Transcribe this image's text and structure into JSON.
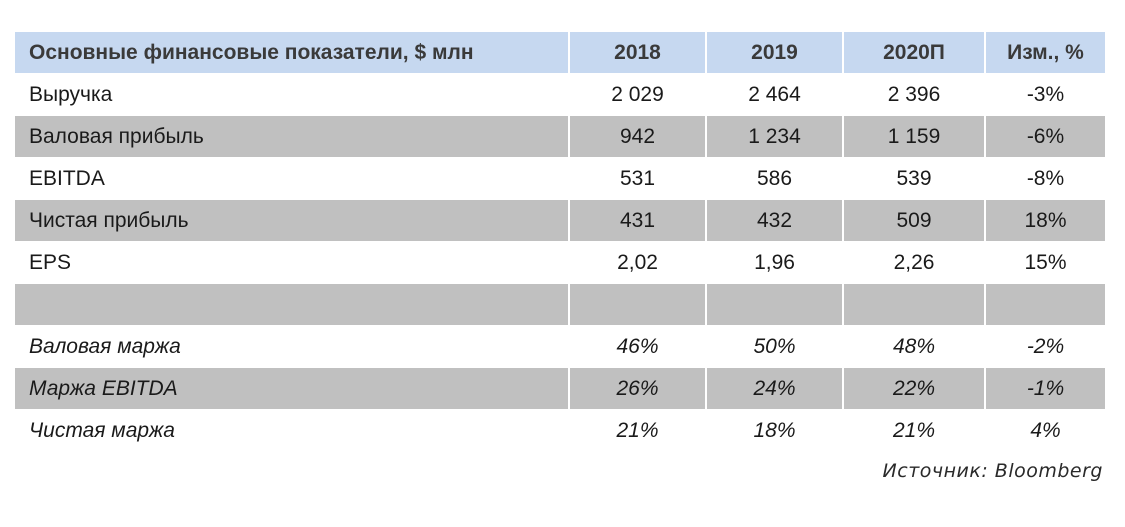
{
  "table": {
    "header": [
      "Основные финансовые показатели, $ млн",
      "2018",
      "2019",
      "2020П",
      "Изм., %"
    ],
    "rows": [
      {
        "cells": [
          "Выручка",
          "2 029",
          "2 464",
          "2 396",
          "-3%"
        ]
      },
      {
        "cells": [
          "Валовая прибыль",
          "942",
          "1 234",
          "1 159",
          "-6%"
        ]
      },
      {
        "cells": [
          "EBITDA",
          "531",
          "586",
          "539",
          "-8%"
        ]
      },
      {
        "cells": [
          "Чистая прибыль",
          "431",
          "432",
          "509",
          "18%"
        ]
      },
      {
        "cells": [
          "EPS",
          "2,02",
          "1,96",
          "2,26",
          "15%"
        ]
      },
      {
        "cells": [
          "",
          "",
          "",
          "",
          ""
        ]
      },
      {
        "cells": [
          "Валовая маржа",
          "46%",
          "50%",
          "48%",
          "-2%"
        ]
      },
      {
        "cells": [
          "Маржа EBITDA",
          "26%",
          "24%",
          "22%",
          "-1%"
        ]
      },
      {
        "cells": [
          "Чистая маржа",
          "21%",
          "18%",
          "21%",
          "4%"
        ]
      }
    ]
  },
  "source": "Источник:  Bloomberg"
}
